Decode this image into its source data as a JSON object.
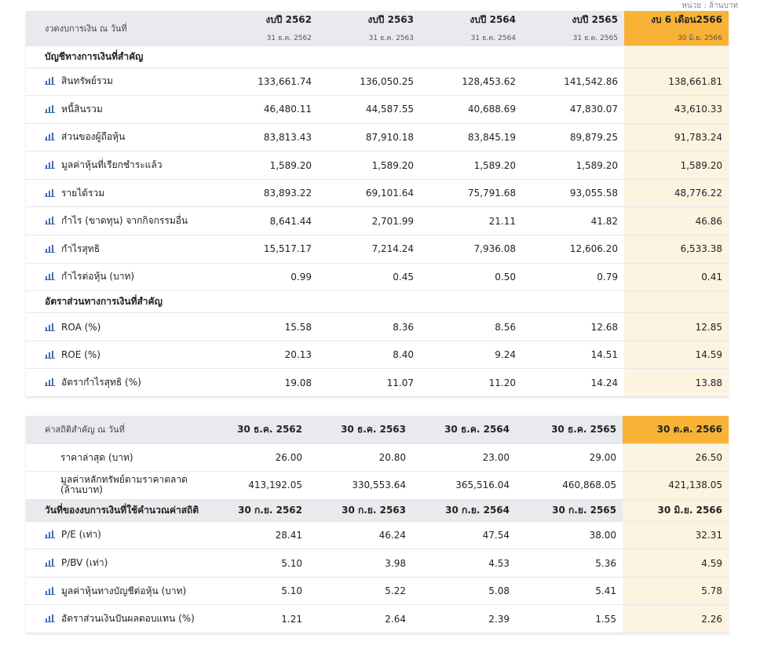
{
  "unit_label": "หน่วย : ล้านบาท",
  "table1": {
    "header_label": "งวดงบการเงิน ณ วันที่",
    "columns": [
      {
        "title": "งบปี 2562",
        "date": "31 ธ.ค. 2562"
      },
      {
        "title": "งบปี 2563",
        "date": "31 ธ.ค. 2563"
      },
      {
        "title": "งบปี 2564",
        "date": "31 ธ.ค. 2564"
      },
      {
        "title": "งบปี 2565",
        "date": "31 ธ.ค. 2565"
      },
      {
        "title": "งบ 6 เดือน2566",
        "date": "30 มิ.ย. 2566"
      }
    ],
    "section1_title": "บัญชีทางการเงินที่สำคัญ",
    "section1_rows": [
      {
        "label": "สินทรัพย์รวม",
        "values": [
          "133,661.74",
          "136,050.25",
          "128,453.62",
          "141,542.86",
          "138,661.81"
        ]
      },
      {
        "label": "หนี้สินรวม",
        "values": [
          "46,480.11",
          "44,587.55",
          "40,688.69",
          "47,830.07",
          "43,610.33"
        ]
      },
      {
        "label": "ส่วนของผู้ถือหุ้น",
        "values": [
          "83,813.43",
          "87,910.18",
          "83,845.19",
          "89,879.25",
          "91,783.24"
        ]
      },
      {
        "label": "มูลค่าหุ้นที่เรียกชำระแล้ว",
        "values": [
          "1,589.20",
          "1,589.20",
          "1,589.20",
          "1,589.20",
          "1,589.20"
        ]
      },
      {
        "label": "รายได้รวม",
        "values": [
          "83,893.22",
          "69,101.64",
          "75,791.68",
          "93,055.58",
          "48,776.22"
        ]
      },
      {
        "label": "กำไร (ขาดทุน) จากกิจกรรมอื่น",
        "values": [
          "8,641.44",
          "2,701.99",
          "21.11",
          "41.82",
          "46.86"
        ]
      },
      {
        "label": "กำไรสุทธิ",
        "values": [
          "15,517.17",
          "7,214.24",
          "7,936.08",
          "12,606.20",
          "6,533.38"
        ]
      },
      {
        "label": "กำไรต่อหุ้น (บาท)",
        "values": [
          "0.99",
          "0.45",
          "0.50",
          "0.79",
          "0.41"
        ]
      }
    ],
    "section2_title": "อัตราส่วนทางการเงินที่สำคัญ",
    "section2_rows": [
      {
        "label": "ROA (%)",
        "values": [
          "15.58",
          "8.36",
          "8.56",
          "12.68",
          "12.85"
        ]
      },
      {
        "label": "ROE (%)",
        "values": [
          "20.13",
          "8.40",
          "9.24",
          "14.51",
          "14.59"
        ]
      },
      {
        "label": "อัตรากำไรสุทธิ (%)",
        "values": [
          "19.08",
          "11.07",
          "11.20",
          "14.24",
          "13.88"
        ]
      }
    ]
  },
  "table2": {
    "header_label": "ค่าสถิติสำคัญ ณ วันที่",
    "columns": [
      "30 ธ.ค. 2562",
      "30 ธ.ค. 2563",
      "30 ธ.ค. 2564",
      "30 ธ.ค. 2565",
      "30 ต.ค. 2566"
    ],
    "rows_a": [
      {
        "label": "ราคาล่าสุด (บาท)",
        "values": [
          "26.00",
          "20.80",
          "23.00",
          "29.00",
          "26.50"
        ]
      },
      {
        "label": "มูลค่าหลักทรัพย์ตามราคาตลาด (ล้านบาท)",
        "values": [
          "413,192.05",
          "330,553.64",
          "365,516.04",
          "460,868.05",
          "421,138.05"
        ]
      }
    ],
    "section_title": "วันที่ของงบการเงินที่ใช้คำนวณค่าสถิติ",
    "section_dates": [
      "30 ก.ย. 2562",
      "30 ก.ย. 2563",
      "30 ก.ย. 2564",
      "30 ก.ย. 2565",
      "30 มิ.ย. 2566"
    ],
    "rows_b": [
      {
        "label": "P/E (เท่า)",
        "values": [
          "28.41",
          "46.24",
          "47.54",
          "38.00",
          "32.31"
        ]
      },
      {
        "label": "P/BV (เท่า)",
        "values": [
          "5.10",
          "3.98",
          "4.53",
          "5.36",
          "4.59"
        ]
      },
      {
        "label": "มูลค่าหุ้นทางบัญชีต่อหุ้น (บาท)",
        "values": [
          "5.10",
          "5.22",
          "5.08",
          "5.41",
          "5.78"
        ]
      },
      {
        "label": "อัตราส่วนเงินปันผลตอบแทน (%)",
        "values": [
          "1.21",
          "2.64",
          "2.39",
          "1.55",
          "2.26"
        ]
      }
    ]
  },
  "colors": {
    "highlight_header": "#f8b236",
    "highlight_cell": "#fdf3e1",
    "header_bg": "#e8eaed",
    "icon": "#3c6fb5"
  },
  "icons": {
    "row_icon": "bar-chart-icon"
  }
}
